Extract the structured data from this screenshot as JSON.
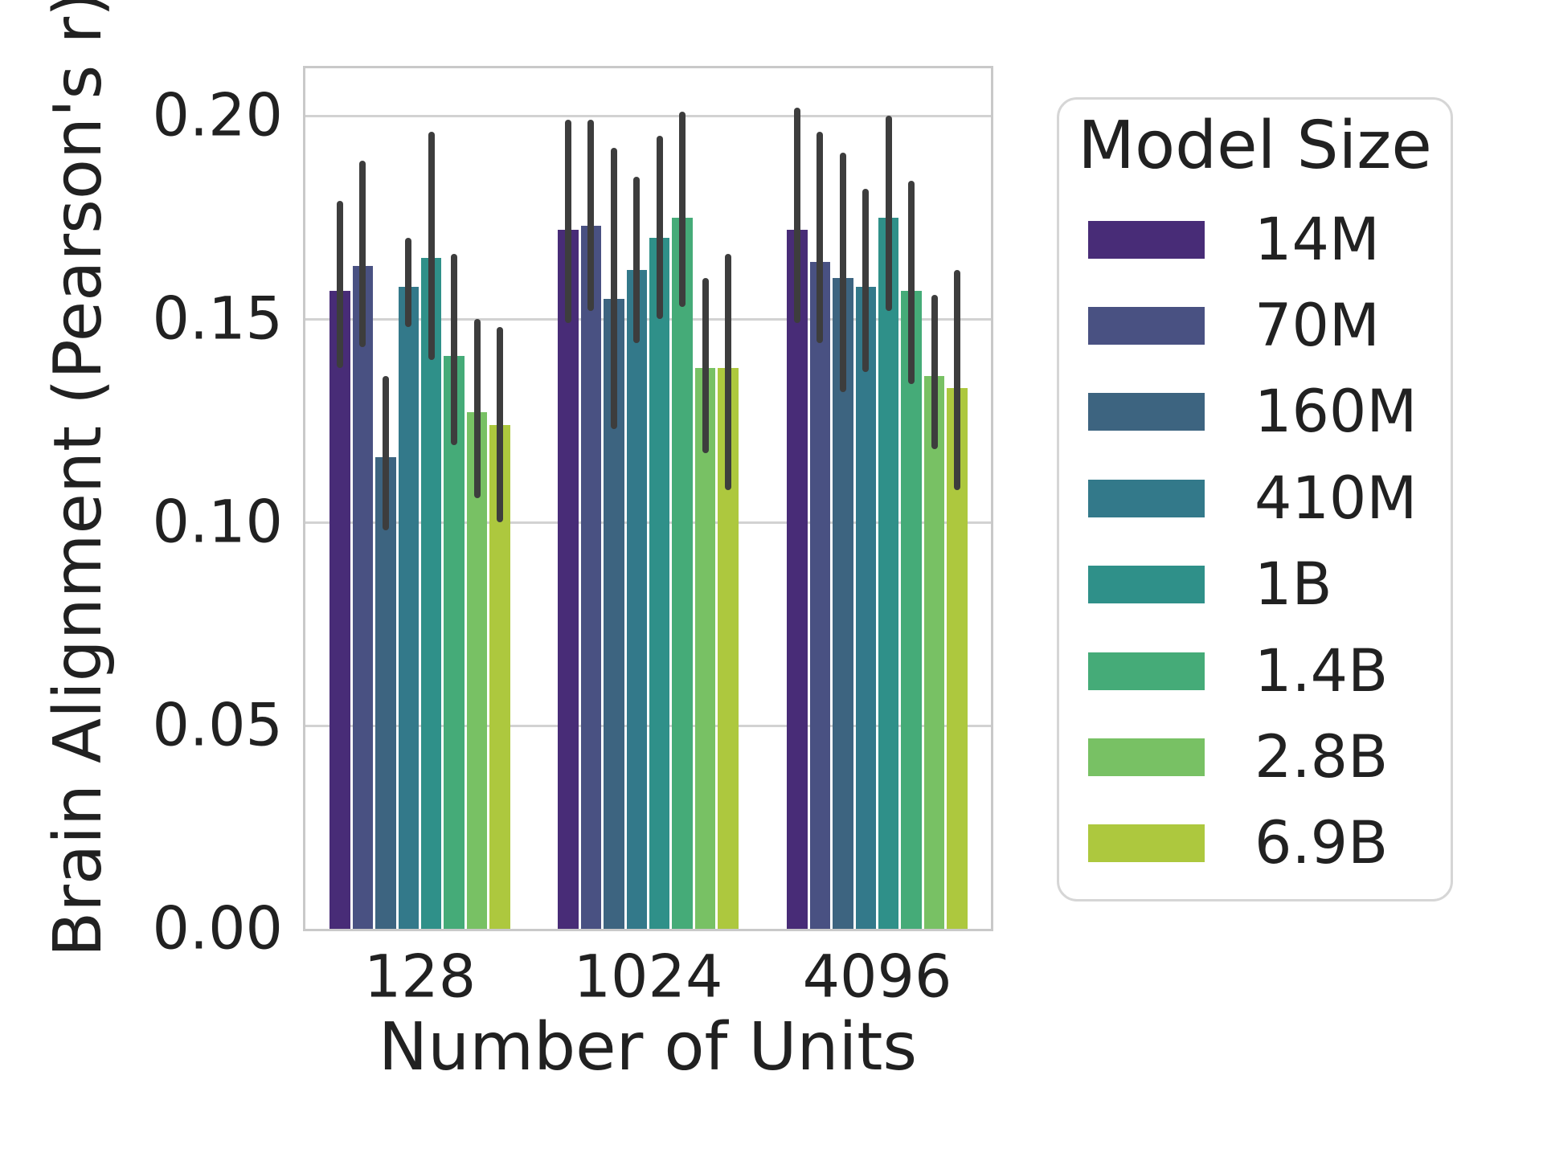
{
  "figure": {
    "ylabel": "Brain Alignment (Pearson's r)",
    "xlabel": "Number of Units",
    "background": "#ffffff",
    "text_color": "#212121",
    "grid_color": "#d2d2d2",
    "spine_color": "#c9c9c9",
    "errorbar_color": "#3d3d3d"
  },
  "legend": {
    "title": "Model Size",
    "position": "right"
  },
  "chart_data": {
    "type": "bar",
    "title": "",
    "xlabel": "Number of Units",
    "ylabel": "Brain Alignment (Pearson's r)",
    "categories": [
      "128",
      "1024",
      "4096"
    ],
    "yticks": [
      "0.00",
      "0.05",
      "0.10",
      "0.15",
      "0.20"
    ],
    "ytick_values": [
      0,
      0.05,
      0.1,
      0.15,
      0.2
    ],
    "ylim": [
      0,
      0.2117
    ],
    "grid": "horizontal",
    "error_bars": true,
    "legend_title": "Model Size",
    "legend_position": "right",
    "series": [
      {
        "name": "14M",
        "color": "#482c77",
        "values": [
          0.157,
          0.172,
          0.172
        ],
        "ci_low": [
          0.138,
          0.149,
          0.149
        ],
        "ci_high": [
          0.179,
          0.199,
          0.202
        ]
      },
      {
        "name": "70M",
        "color": "#495182",
        "values": [
          0.163,
          0.173,
          0.164
        ],
        "ci_low": [
          0.143,
          0.152,
          0.144
        ],
        "ci_high": [
          0.189,
          0.199,
          0.196
        ]
      },
      {
        "name": "160M",
        "color": "#3d6480",
        "values": [
          0.116,
          0.155,
          0.16
        ],
        "ci_low": [
          0.098,
          0.123,
          0.132
        ],
        "ci_high": [
          0.136,
          0.192,
          0.191
        ]
      },
      {
        "name": "410M",
        "color": "#33798a",
        "values": [
          0.158,
          0.162,
          0.158
        ],
        "ci_low": [
          0.148,
          0.144,
          0.137
        ],
        "ci_high": [
          0.17,
          0.185,
          0.182
        ]
      },
      {
        "name": "1B",
        "color": "#2f9089",
        "values": [
          0.165,
          0.17,
          0.175
        ],
        "ci_low": [
          0.14,
          0.15,
          0.152
        ],
        "ci_high": [
          0.196,
          0.195,
          0.2
        ]
      },
      {
        "name": "1.4B",
        "color": "#45ab78",
        "values": [
          0.141,
          0.175,
          0.157
        ],
        "ci_low": [
          0.119,
          0.153,
          0.134
        ],
        "ci_high": [
          0.166,
          0.201,
          0.184
        ]
      },
      {
        "name": "2.8B",
        "color": "#78c164",
        "values": [
          0.127,
          0.138,
          0.136
        ],
        "ci_low": [
          0.106,
          0.117,
          0.118
        ],
        "ci_high": [
          0.15,
          0.16,
          0.156
        ]
      },
      {
        "name": "6.9B",
        "color": "#adc83e",
        "values": [
          0.124,
          0.138,
          0.133
        ],
        "ci_low": [
          0.1,
          0.108,
          0.108
        ],
        "ci_high": [
          0.148,
          0.166,
          0.162
        ]
      }
    ]
  }
}
